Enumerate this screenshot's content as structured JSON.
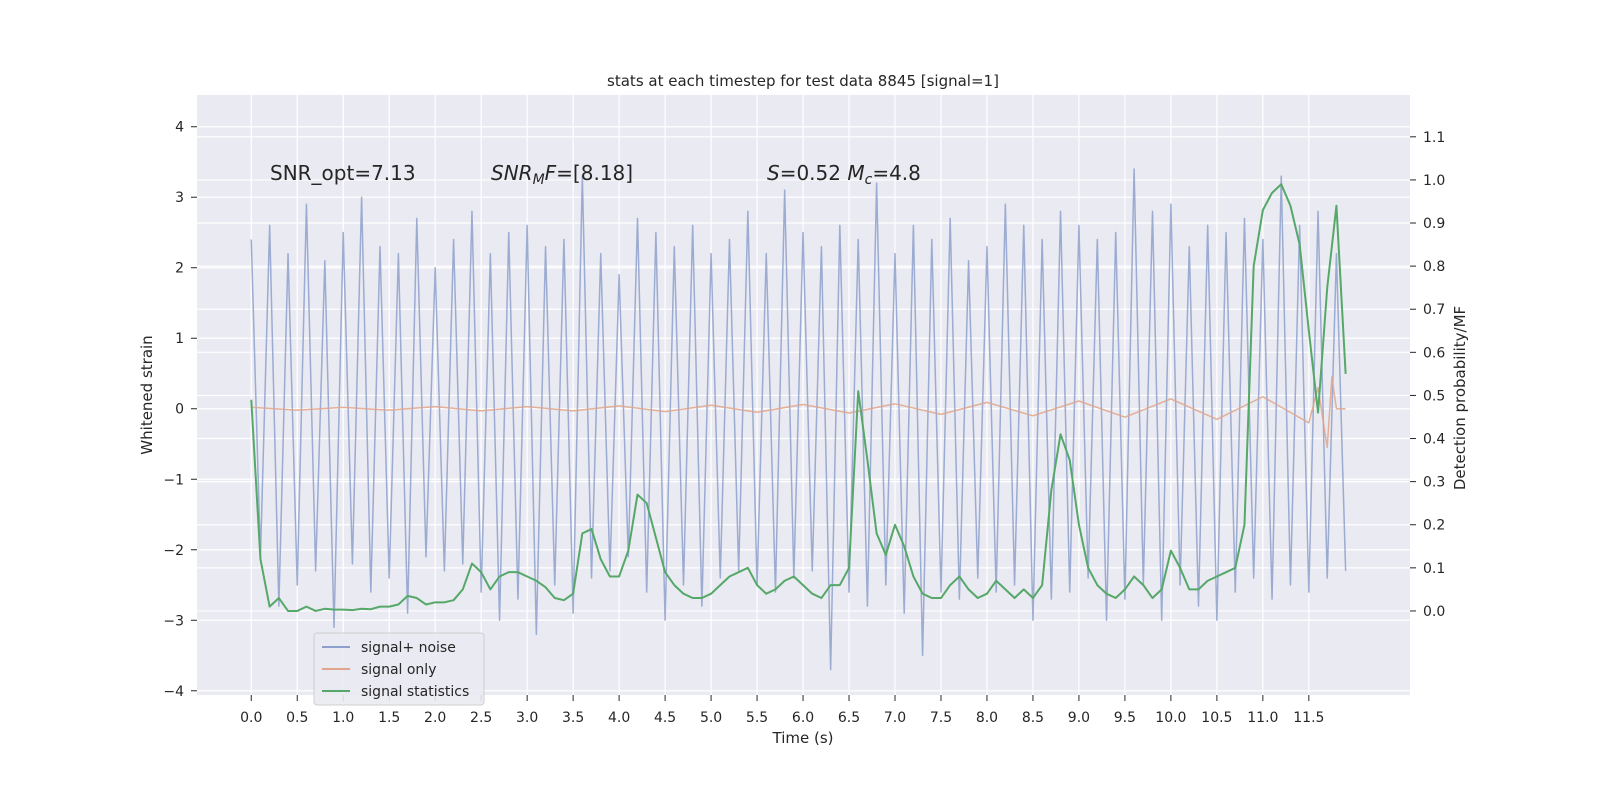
{
  "chart_data": {
    "type": "line",
    "title": "stats at each timestep for test data 8845 [signal=1]",
    "x_label": "Time (s)",
    "y_label": "Whitened strain",
    "y2_label": "Detection probability/MF",
    "annotations": [
      [
        {
          "text": "SNR_opt=7.13",
          "style": "normal"
        }
      ],
      [
        {
          "text": "SNR",
          "style": "italic"
        },
        {
          "text": "M",
          "style": "italic-sub"
        },
        {
          "text": "F",
          "style": "italic"
        },
        {
          "text": "=[8.18]",
          "style": "normal"
        }
      ],
      [
        {
          "text": "S",
          "style": "italic"
        },
        {
          "text": "=0.52   ",
          "style": "normal"
        },
        {
          "text": "M",
          "style": "italic"
        },
        {
          "text": "c",
          "style": "italic-sub"
        },
        {
          "text": "=4.8",
          "style": "normal"
        }
      ]
    ],
    "x": [
      0,
      0.1,
      0.2,
      0.3,
      0.4,
      0.5,
      0.6,
      0.7,
      0.8,
      0.9,
      1.0,
      1.1,
      1.2,
      1.3,
      1.4,
      1.5,
      1.6,
      1.7,
      1.8,
      1.9,
      2.0,
      2.1,
      2.2,
      2.3,
      2.4,
      2.5,
      2.6,
      2.7,
      2.8,
      2.9,
      3.0,
      3.1,
      3.2,
      3.3,
      3.4,
      3.5,
      3.6,
      3.7,
      3.8,
      3.9,
      4.0,
      4.1,
      4.2,
      4.3,
      4.4,
      4.5,
      4.6,
      4.7,
      4.8,
      4.9,
      5.0,
      5.1,
      5.2,
      5.3,
      5.4,
      5.5,
      5.6,
      5.7,
      5.8,
      5.9,
      6.0,
      6.1,
      6.2,
      6.3,
      6.4,
      6.5,
      6.6,
      6.7,
      6.8,
      6.9,
      7.0,
      7.1,
      7.2,
      7.3,
      7.4,
      7.5,
      7.6,
      7.7,
      7.8,
      7.9,
      8.0,
      8.1,
      8.2,
      8.3,
      8.4,
      8.5,
      8.6,
      8.7,
      8.8,
      8.9,
      9.0,
      9.1,
      9.2,
      9.3,
      9.4,
      9.5,
      9.6,
      9.7,
      9.8,
      9.9,
      10.0,
      10.1,
      10.2,
      10.3,
      10.4,
      10.5,
      10.6,
      10.7,
      10.8,
      10.9,
      11.0,
      11.1,
      11.2,
      11.3,
      11.4,
      11.5,
      11.6,
      11.7,
      11.8,
      11.9
    ],
    "series": [
      {
        "name": "signal+ noise",
        "color": "#8da0cb",
        "values": [
          2.4,
          -2.1,
          2.6,
          -2.8,
          2.2,
          -2.5,
          2.9,
          -2.3,
          2.1,
          -3.1,
          2.5,
          -2.2,
          3.0,
          -2.6,
          2.3,
          -2.4,
          2.2,
          -2.9,
          2.7,
          -2.1,
          2.0,
          -2.3,
          2.4,
          -2.2,
          2.8,
          -2.6,
          2.2,
          -3.0,
          2.5,
          -2.7,
          2.6,
          -3.2,
          2.3,
          -2.5,
          2.4,
          -2.9,
          3.3,
          -2.4,
          2.2,
          -2.3,
          1.9,
          -2.1,
          2.7,
          -2.6,
          2.5,
          -3.0,
          2.3,
          -2.5,
          2.6,
          -2.8,
          2.2,
          -2.4,
          2.4,
          -2.3,
          2.8,
          -2.5,
          2.2,
          -2.6,
          3.1,
          -2.4,
          2.5,
          -2.3,
          2.3,
          -3.7,
          2.6,
          -2.6,
          2.4,
          -2.8,
          3.2,
          -2.5,
          2.2,
          -2.9,
          2.6,
          -3.5,
          2.4,
          -2.6,
          2.7,
          -2.7,
          2.1,
          -2.4,
          2.3,
          -2.6,
          2.9,
          -2.5,
          2.6,
          -3.0,
          2.4,
          -2.7,
          2.8,
          -2.6,
          2.6,
          -2.4,
          2.4,
          -3.0,
          2.5,
          -2.7,
          3.4,
          -2.5,
          2.8,
          -3.0,
          2.9,
          -2.5,
          2.3,
          -2.8,
          2.6,
          -3.0,
          2.5,
          -2.6,
          2.7,
          -2.4,
          2.4,
          -2.7,
          3.3,
          -2.5,
          2.6,
          -2.6,
          2.8,
          -2.4,
          2.2,
          -2.3
        ]
      },
      {
        "name": "signal only",
        "color": "#e0a58a",
        "x": [
          0,
          0.5,
          1.0,
          1.5,
          2.0,
          2.5,
          3.0,
          3.5,
          4.0,
          4.5,
          5.0,
          5.5,
          6.0,
          6.5,
          7.0,
          7.5,
          8.0,
          8.5,
          9.0,
          9.5,
          10.0,
          10.5,
          11.0,
          11.5,
          11.6,
          11.7,
          11.75,
          11.8,
          11.9
        ],
        "values": [
          0.02,
          -0.02,
          0.02,
          -0.02,
          0.03,
          -0.03,
          0.03,
          -0.03,
          0.04,
          -0.04,
          0.05,
          -0.05,
          0.06,
          -0.06,
          0.07,
          -0.08,
          0.09,
          -0.1,
          0.11,
          -0.12,
          0.14,
          -0.15,
          0.17,
          -0.2,
          0.3,
          -0.55,
          0.45,
          0,
          0
        ]
      },
      {
        "name": "signal statistics",
        "color": "#55a868",
        "axis": "y2",
        "values": [
          0.49,
          0.12,
          0.01,
          0.03,
          0.0,
          0.0,
          0.01,
          0.0,
          0.005,
          0.003,
          0.003,
          0.002,
          0.005,
          0.004,
          0.01,
          0.01,
          0.015,
          0.035,
          0.03,
          0.015,
          0.02,
          0.02,
          0.025,
          0.05,
          0.11,
          0.09,
          0.05,
          0.08,
          0.09,
          0.09,
          0.08,
          0.07,
          0.055,
          0.03,
          0.025,
          0.04,
          0.18,
          0.19,
          0.12,
          0.08,
          0.08,
          0.14,
          0.27,
          0.25,
          0.17,
          0.09,
          0.06,
          0.04,
          0.03,
          0.03,
          0.04,
          0.06,
          0.08,
          0.09,
          0.1,
          0.06,
          0.04,
          0.05,
          0.07,
          0.08,
          0.06,
          0.04,
          0.03,
          0.06,
          0.06,
          0.1,
          0.51,
          0.35,
          0.18,
          0.13,
          0.2,
          0.15,
          0.08,
          0.04,
          0.03,
          0.03,
          0.06,
          0.08,
          0.05,
          0.03,
          0.04,
          0.07,
          0.05,
          0.03,
          0.05,
          0.03,
          0.06,
          0.28,
          0.41,
          0.35,
          0.2,
          0.1,
          0.06,
          0.04,
          0.03,
          0.05,
          0.08,
          0.06,
          0.03,
          0.05,
          0.14,
          0.1,
          0.05,
          0.05,
          0.07,
          0.08,
          0.09,
          0.1,
          0.2,
          0.8,
          0.93,
          0.97,
          0.99,
          0.94,
          0.85,
          0.65,
          0.46,
          0.75,
          0.94,
          0.55
        ]
      }
    ],
    "xlim": [
      -0.59,
      12.6
    ],
    "ylim": [
      -4.06,
      4.45
    ],
    "y2lim": [
      -0.195,
      1.197
    ],
    "xticks": [
      {
        "value": 0,
        "label": "0.0"
      },
      0.5,
      {
        "value": 1,
        "label": "1.0"
      },
      1.5,
      {
        "value": 2,
        "label": "2.0"
      },
      2.5,
      {
        "value": 3,
        "label": "3.0"
      },
      3.5,
      {
        "value": 4,
        "label": "4.0"
      },
      4.5,
      {
        "value": 5,
        "label": "5.0"
      },
      5.5,
      {
        "value": 6,
        "label": "6.0"
      },
      6.5,
      {
        "value": 7,
        "label": "7.0"
      },
      7.5,
      {
        "value": 8,
        "label": "8.0"
      },
      8.5,
      {
        "value": 9,
        "label": "9.0"
      },
      9.5,
      {
        "value": 10,
        "label": "10.0"
      },
      10.5,
      {
        "value": 11,
        "label": "11.0"
      },
      11.5
    ],
    "yticks": [
      {
        "value": -4,
        "label": "−4"
      },
      {
        "value": -3,
        "label": "−3"
      },
      {
        "value": -2,
        "label": "−2"
      },
      {
        "value": -1,
        "label": "−1"
      },
      0,
      1,
      2,
      3,
      4
    ],
    "y2ticks": [
      {
        "value": 0,
        "label": "0.0"
      },
      0.1,
      0.2,
      0.3,
      0.4,
      0.5,
      0.6,
      0.7,
      0.8,
      0.9,
      {
        "value": 1,
        "label": "1.0"
      },
      1.1
    ],
    "grid": true,
    "legend": "lower left"
  }
}
